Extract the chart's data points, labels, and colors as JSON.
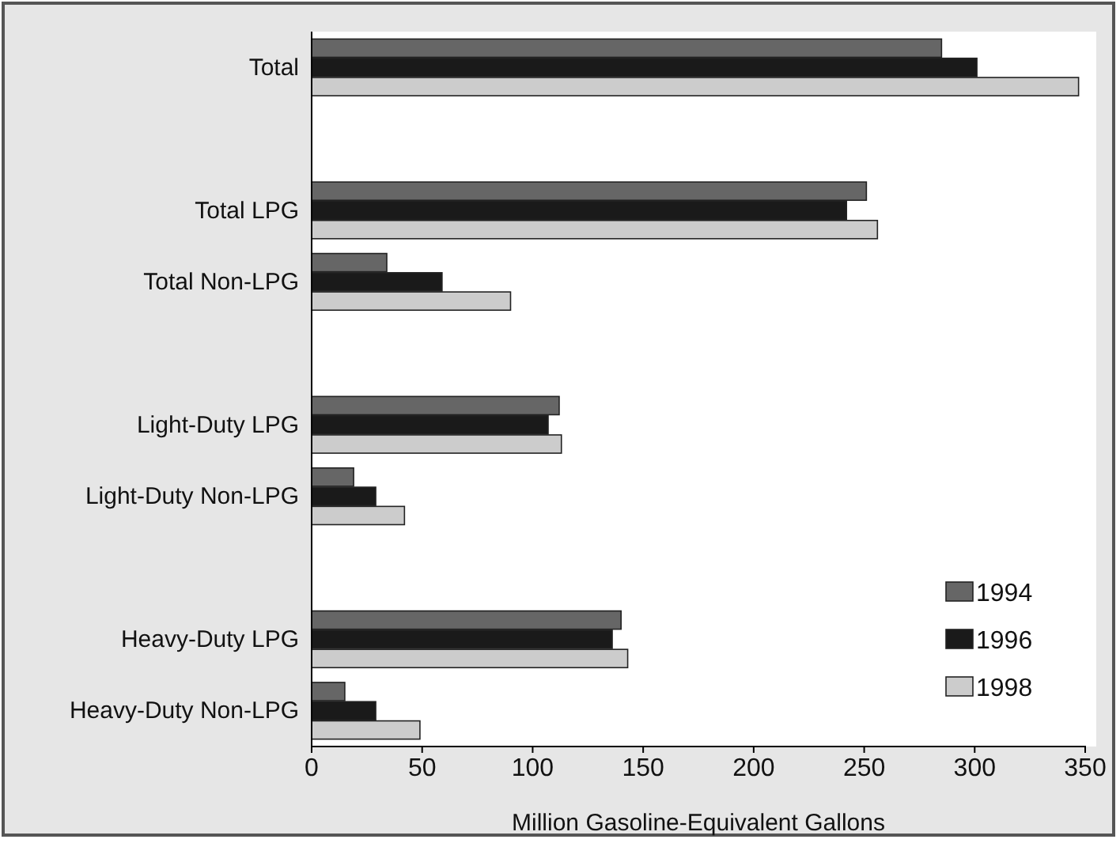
{
  "chart_data": {
    "type": "bar",
    "orientation": "horizontal",
    "xlabel": "Million Gasoline-Equivalent Gallons",
    "categories": [
      "Total",
      null,
      "Total LPG",
      "Total Non-LPG",
      null,
      "Light-Duty LPG",
      "Light-Duty Non-LPG",
      null,
      "Heavy-Duty LPG",
      "Heavy-Duty Non-LPG"
    ],
    "series": [
      {
        "name": "1994",
        "color": "#666666",
        "values": [
          285,
          null,
          251,
          34,
          null,
          112,
          19,
          null,
          140,
          15
        ]
      },
      {
        "name": "1996",
        "color": "#1a1a1a",
        "values": [
          301,
          null,
          242,
          59,
          null,
          107,
          29,
          null,
          136,
          29
        ]
      },
      {
        "name": "1998",
        "color": "#cccccc",
        "values": [
          347,
          null,
          256,
          90,
          null,
          113,
          42,
          null,
          143,
          49
        ]
      }
    ],
    "xlim": [
      0,
      350
    ],
    "xticks": [
      0,
      50,
      100,
      150,
      200,
      250,
      300,
      350
    ],
    "grid": false,
    "legend": "bottom right"
  }
}
